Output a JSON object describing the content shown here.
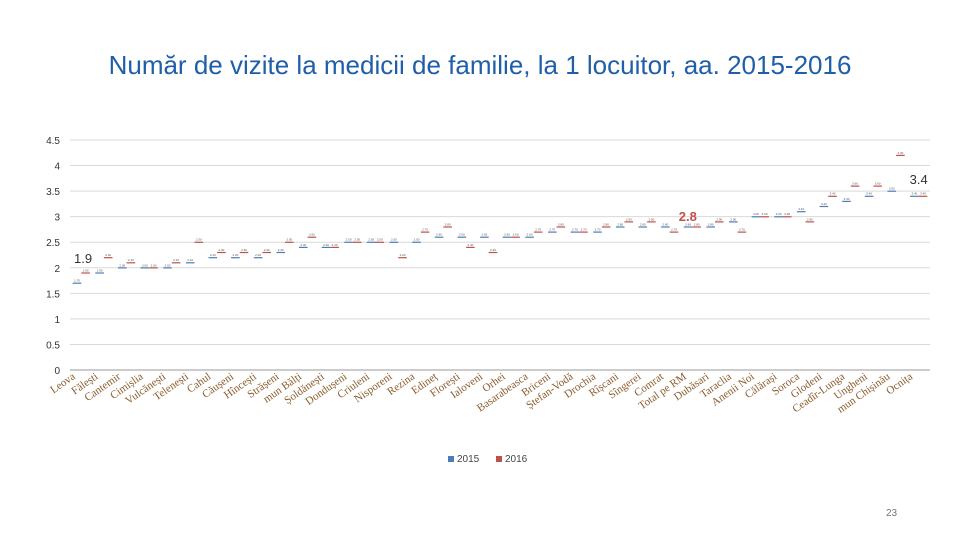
{
  "title": "Număr de vizite la medicii de familie, la 1 locuitor, aa. 2015-2016",
  "page_number": "23",
  "colors": {
    "title": "#1f5ea8",
    "series_2015": "#4a7ebb",
    "series_2016": "#c0504d",
    "annotation_red": "#c0504d",
    "grid": "#d9d9d9",
    "axis_text": "#333333"
  },
  "chart_data": {
    "type": "bar",
    "title": "Număr de vizite la medicii de familie, la 1 locuitor, aa. 2015-2016",
    "xlabel": "",
    "ylabel": "",
    "ylim": [
      0,
      4.5
    ],
    "yticks": [
      "0",
      "0.5",
      "1",
      "1.5",
      "2",
      "2.5",
      "3",
      "3.5",
      "4",
      "4.5"
    ],
    "grid": true,
    "legend": "bottom",
    "categories": [
      "Leova",
      "Fălești",
      "Cantemir",
      "Cimișlia",
      "Vulcănești",
      "Telenești",
      "Cahul",
      "Căușeni",
      "Hîncești",
      "Strășeni",
      "mun Bălți",
      "Șoldănești",
      "Dondușeni",
      "Criuleni",
      "Nisporeni",
      "Rezina",
      "Edineț",
      "Florești",
      "Ialoveni",
      "Orhei",
      "Basarabeasca",
      "Briceni",
      "Ștefan-Vodă",
      "Drochia",
      "Rîșcani",
      "Sîngerei",
      "Comrat",
      "Total pe RM",
      "Dubăsari",
      "Taraclia",
      "Anenii Noi",
      "Călărași",
      "Soroca",
      "Glodeni",
      "Ceadîr-Lunga",
      "Ungheni",
      "mun Chișinău",
      "Ocnița"
    ],
    "series": [
      {
        "name": "2015",
        "values": [
          1.7,
          1.9,
          2.0,
          2.0,
          2.0,
          2.1,
          2.2,
          2.2,
          2.2,
          2.3,
          2.4,
          2.4,
          2.5,
          2.5,
          2.5,
          2.5,
          2.6,
          2.6,
          2.6,
          2.6,
          2.6,
          2.7,
          2.7,
          2.7,
          2.8,
          2.8,
          2.8,
          2.8,
          2.8,
          2.9,
          3.0,
          3.0,
          3.1,
          3.2,
          3.3,
          3.4,
          3.5,
          3.4
        ]
      },
      {
        "name": "2016",
        "values": [
          1.9,
          2.2,
          2.1,
          2.0,
          2.1,
          2.5,
          2.3,
          2.3,
          2.3,
          2.5,
          2.6,
          2.4,
          2.5,
          2.5,
          2.2,
          2.7,
          2.8,
          2.4,
          2.3,
          2.6,
          2.7,
          2.8,
          2.7,
          2.8,
          2.9,
          2.9,
          2.7,
          2.8,
          2.9,
          2.7,
          3.0,
          3.0,
          2.9,
          3.4,
          3.6,
          3.6,
          4.2,
          3.4
        ]
      }
    ],
    "annotations": [
      {
        "text": "1.9",
        "color": "#333333"
      },
      {
        "text": "2.8",
        "color": "#c0504d"
      },
      {
        "text": "3.4",
        "color": "#333333"
      }
    ]
  }
}
